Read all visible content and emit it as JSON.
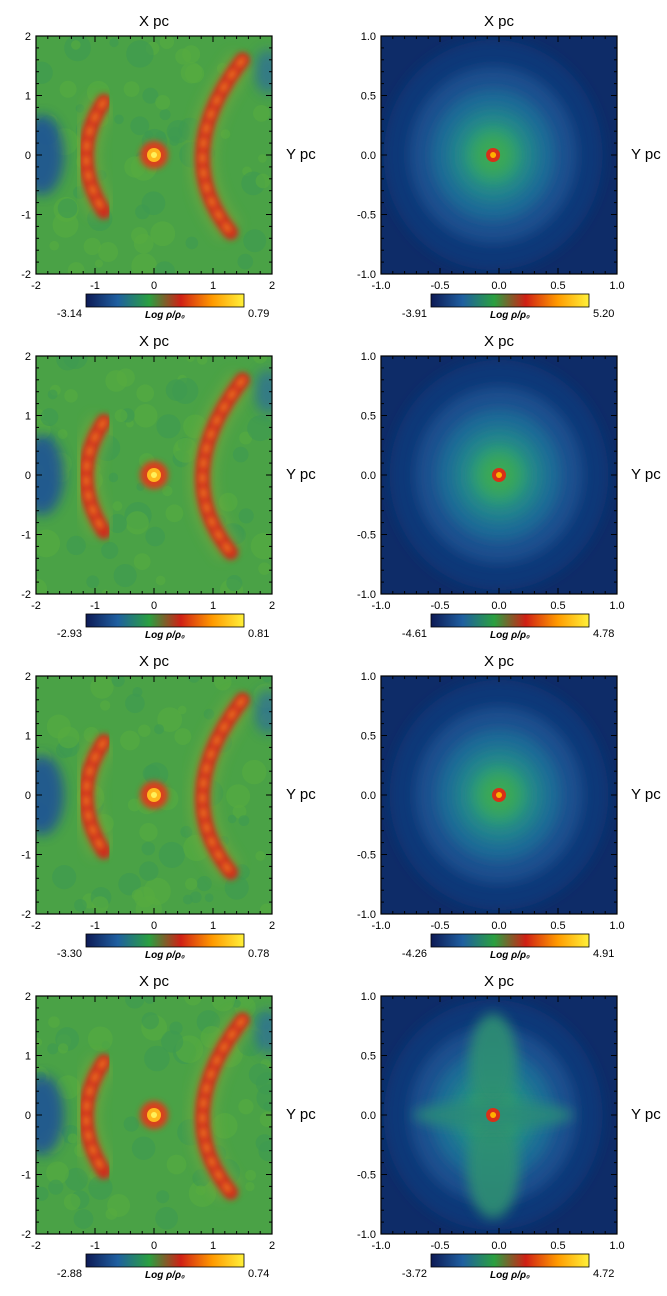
{
  "chart_data": [
    {
      "type": "heatmap",
      "title": "X pc",
      "ylabel": "Y pc",
      "xlim": [
        -2,
        2
      ],
      "ylim": [
        -2,
        2
      ],
      "xticks": [
        "-2",
        "-1",
        "0",
        "1",
        "2"
      ],
      "yticks": [
        "2",
        "1",
        "0",
        "-1",
        "-2"
      ],
      "colorbar": {
        "label": "Log ρ/ρ₀",
        "min": "-3.14",
        "max": "0.79"
      },
      "colormap": [
        "#0d1a55",
        "#1f5fa0",
        "#2aa040",
        "#d02015",
        "#ff9a00",
        "#fff13a"
      ],
      "structure": "two-arcs",
      "core": [
        0,
        0
      ]
    },
    {
      "type": "heatmap",
      "title": "X pc",
      "ylabel": "Y pc",
      "xlim": [
        -1,
        1
      ],
      "ylim": [
        -1,
        1
      ],
      "xticks": [
        "-1.0",
        "-0.5",
        "0.0",
        "0.5",
        "1.0"
      ],
      "yticks": [
        "1.0",
        "0.5",
        "0.0",
        "-0.5",
        "-1.0"
      ],
      "colorbar": {
        "label": "Log ρ/ρ₀",
        "min": "-3.91",
        "max": "5.20"
      },
      "colormap": [
        "#0d1a55",
        "#1f5fa0",
        "#2aa040",
        "#d02015",
        "#ff9a00",
        "#fff13a"
      ],
      "structure": "core",
      "core": [
        -0.05,
        0
      ]
    },
    {
      "type": "heatmap",
      "title": "X pc",
      "ylabel": "Y pc",
      "xlim": [
        -2,
        2
      ],
      "ylim": [
        -2,
        2
      ],
      "xticks": [
        "-2",
        "-1",
        "0",
        "1",
        "2"
      ],
      "yticks": [
        "2",
        "1",
        "0",
        "-1",
        "-2"
      ],
      "colorbar": {
        "label": "Log ρ/ρ₀",
        "min": "-2.93",
        "max": "0.81"
      },
      "colormap": [
        "#0d1a55",
        "#1f5fa0",
        "#2aa040",
        "#d02015",
        "#ff9a00",
        "#fff13a"
      ],
      "structure": "two-arcs",
      "core": [
        0,
        0
      ]
    },
    {
      "type": "heatmap",
      "title": "X pc",
      "ylabel": "Y pc",
      "xlim": [
        -1,
        1
      ],
      "ylim": [
        -1,
        1
      ],
      "xticks": [
        "-1.0",
        "-0.5",
        "0.0",
        "0.5",
        "1.0"
      ],
      "yticks": [
        "1.0",
        "0.5",
        "0.0",
        "-0.5",
        "-1.0"
      ],
      "colorbar": {
        "label": "Log ρ/ρ₀",
        "min": "-4.61",
        "max": "4.78"
      },
      "colormap": [
        "#0d1a55",
        "#1f5fa0",
        "#2aa040",
        "#d02015",
        "#ff9a00",
        "#fff13a"
      ],
      "structure": "core",
      "core": [
        0,
        0
      ]
    },
    {
      "type": "heatmap",
      "title": "X pc",
      "ylabel": "Y pc",
      "xlim": [
        -2,
        2
      ],
      "ylim": [
        -2,
        2
      ],
      "xticks": [
        "-2",
        "-1",
        "0",
        "1",
        "2"
      ],
      "yticks": [
        "2",
        "1",
        "0",
        "-1",
        "-2"
      ],
      "colorbar": {
        "label": "Log ρ/ρ₀",
        "min": "-3.30",
        "max": "0.78"
      },
      "colormap": [
        "#0d1a55",
        "#1f5fa0",
        "#2aa040",
        "#d02015",
        "#ff9a00",
        "#fff13a"
      ],
      "structure": "two-arcs",
      "core": [
        0,
        0
      ]
    },
    {
      "type": "heatmap",
      "title": "X pc",
      "ylabel": "Y pc",
      "xlim": [
        -1,
        1
      ],
      "ylim": [
        -1,
        1
      ],
      "xticks": [
        "-1.0",
        "-0.5",
        "0.0",
        "0.5",
        "1.0"
      ],
      "yticks": [
        "1.0",
        "0.5",
        "0.0",
        "-0.5",
        "-1.0"
      ],
      "colorbar": {
        "label": "Log ρ/ρ₀",
        "min": "-4.26",
        "max": "4.91"
      },
      "colormap": [
        "#0d1a55",
        "#1f5fa0",
        "#2aa040",
        "#d02015",
        "#ff9a00",
        "#fff13a"
      ],
      "structure": "core",
      "core": [
        0,
        0
      ]
    },
    {
      "type": "heatmap",
      "title": "X pc",
      "ylabel": "Y pc",
      "xlim": [
        -2,
        2
      ],
      "ylim": [
        -2,
        2
      ],
      "xticks": [
        "-2",
        "-1",
        "0",
        "1",
        "2"
      ],
      "yticks": [
        "2",
        "1",
        "0",
        "-1",
        "-2"
      ],
      "colorbar": {
        "label": "Log ρ/ρ₀",
        "min": "-2.88",
        "max": "0.74"
      },
      "colormap": [
        "#0d1a55",
        "#1f5fa0",
        "#2aa040",
        "#d02015",
        "#ff9a00",
        "#fff13a"
      ],
      "structure": "two-arcs",
      "core": [
        0,
        0
      ]
    },
    {
      "type": "heatmap",
      "title": "X pc",
      "ylabel": "Y pc",
      "xlim": [
        -1,
        1
      ],
      "ylim": [
        -1,
        1
      ],
      "xticks": [
        "-1.0",
        "-0.5",
        "0.0",
        "0.5",
        "1.0"
      ],
      "yticks": [
        "1.0",
        "0.5",
        "0.0",
        "-0.5",
        "-1.0"
      ],
      "colorbar": {
        "label": "Log ρ/ρ₀",
        "min": "-3.72",
        "max": "4.72"
      },
      "colormap": [
        "#0d1a55",
        "#1f5fa0",
        "#2aa040",
        "#d02015",
        "#ff9a00",
        "#fff13a"
      ],
      "structure": "cross-filaments",
      "core": [
        -0.05,
        0
      ]
    }
  ]
}
